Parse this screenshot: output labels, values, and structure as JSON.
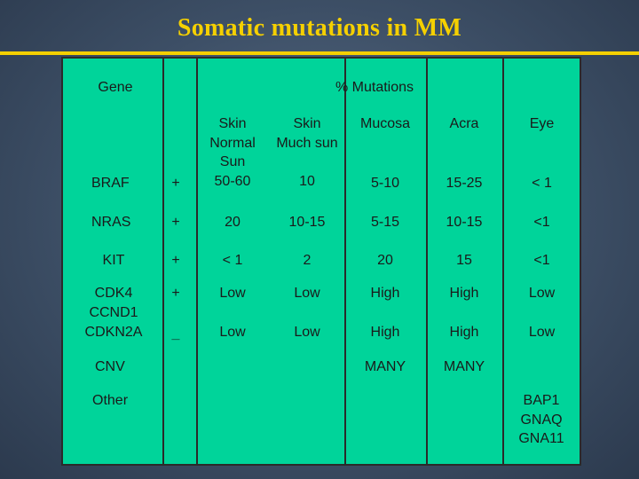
{
  "title": "Somatic mutations in MM",
  "colors": {
    "title": "#f5d000",
    "table_bg": "#00d49a",
    "grid": "#2a2a2a"
  },
  "table": {
    "header": {
      "gene": "Gene",
      "mutations": "% Mutations"
    },
    "columns": [
      "Skin Normal Sun",
      "Skin Much sun",
      "Mucosa",
      "Acra",
      "Eye"
    ],
    "rows": [
      {
        "gene": "BRAF",
        "sign": "+",
        "values": [
          "50-60",
          "10",
          "5-10",
          "15-25",
          "< 1"
        ]
      },
      {
        "gene": "NRAS",
        "sign": "+",
        "values": [
          "20",
          "10-15",
          "5-15",
          "10-15",
          "<1"
        ]
      },
      {
        "gene": "KIT",
        "sign": "+",
        "values": [
          "< 1",
          "2",
          "20",
          "15",
          "<1"
        ]
      },
      {
        "gene": "CDK4",
        "sign": "+",
        "values": [
          "Low",
          "Low",
          "High",
          "High",
          "Low"
        ]
      },
      {
        "gene": "CCND1",
        "sign": "",
        "values": []
      },
      {
        "gene": "CDKN2A",
        "sign": "_",
        "values": [
          "Low",
          "Low",
          "High",
          "High",
          "Low"
        ]
      },
      {
        "gene": "CNV",
        "sign": "",
        "values": [
          "",
          "",
          "MANY",
          "MANY",
          ""
        ]
      },
      {
        "gene": "Other",
        "sign": "",
        "values": [
          "",
          "",
          "",
          "",
          "BAP1 GNAQ GNA11"
        ]
      }
    ]
  }
}
